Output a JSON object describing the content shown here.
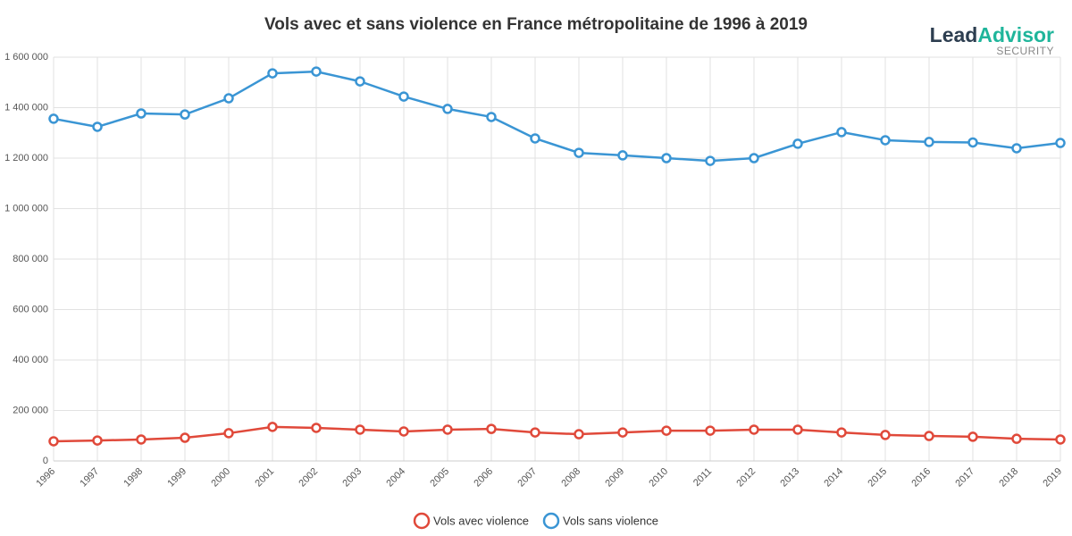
{
  "chart_data": {
    "type": "line",
    "title": "Vols avec et sans violence en France métropolitaine de 1996 à 2019",
    "categories": [
      "1996",
      "1997",
      "1998",
      "1999",
      "2000",
      "2001",
      "2002",
      "2003",
      "2004",
      "2005",
      "2006",
      "2007",
      "2008",
      "2009",
      "2010",
      "2011",
      "2012",
      "2013",
      "2014",
      "2015",
      "2016",
      "2017",
      "2018",
      "2019"
    ],
    "series": [
      {
        "name": "Vols avec violence",
        "color": "#e0493a",
        "values": [
          78000,
          81000,
          85000,
          92000,
          110000,
          135000,
          131000,
          124000,
          117000,
          124000,
          127000,
          113000,
          106000,
          113000,
          120000,
          120000,
          124000,
          124000,
          113000,
          103000,
          99000,
          96000,
          88000,
          85000
        ]
      },
      {
        "name": "Vols sans violence",
        "color": "#3a95d4",
        "values": [
          1356000,
          1324000,
          1377000,
          1373000,
          1437000,
          1536000,
          1543000,
          1504000,
          1444000,
          1395000,
          1363000,
          1278000,
          1221000,
          1211000,
          1200000,
          1189000,
          1200000,
          1257000,
          1303000,
          1271000,
          1264000,
          1262000,
          1239000,
          1260000
        ]
      }
    ],
    "ylim": [
      0,
      1600000
    ],
    "yticks": [
      0,
      {
        "value": 200000,
        "label": "200 000"
      },
      {
        "value": 400000,
        "label": "400 000"
      },
      {
        "value": 600000,
        "label": "600 000"
      },
      {
        "value": 800000,
        "label": "800 000"
      },
      {
        "value": 1000000,
        "label": "1 000 000"
      },
      {
        "value": 1200000,
        "label": "1 200 000"
      },
      {
        "value": 1400000,
        "label": "1 400 000"
      },
      {
        "value": 1600000,
        "label": "1 600 000"
      }
    ],
    "grid": true,
    "legend": "bottom"
  },
  "logo": {
    "lead": "Lead",
    "advisor": "Advisor",
    "tagline": "SECURITY"
  }
}
